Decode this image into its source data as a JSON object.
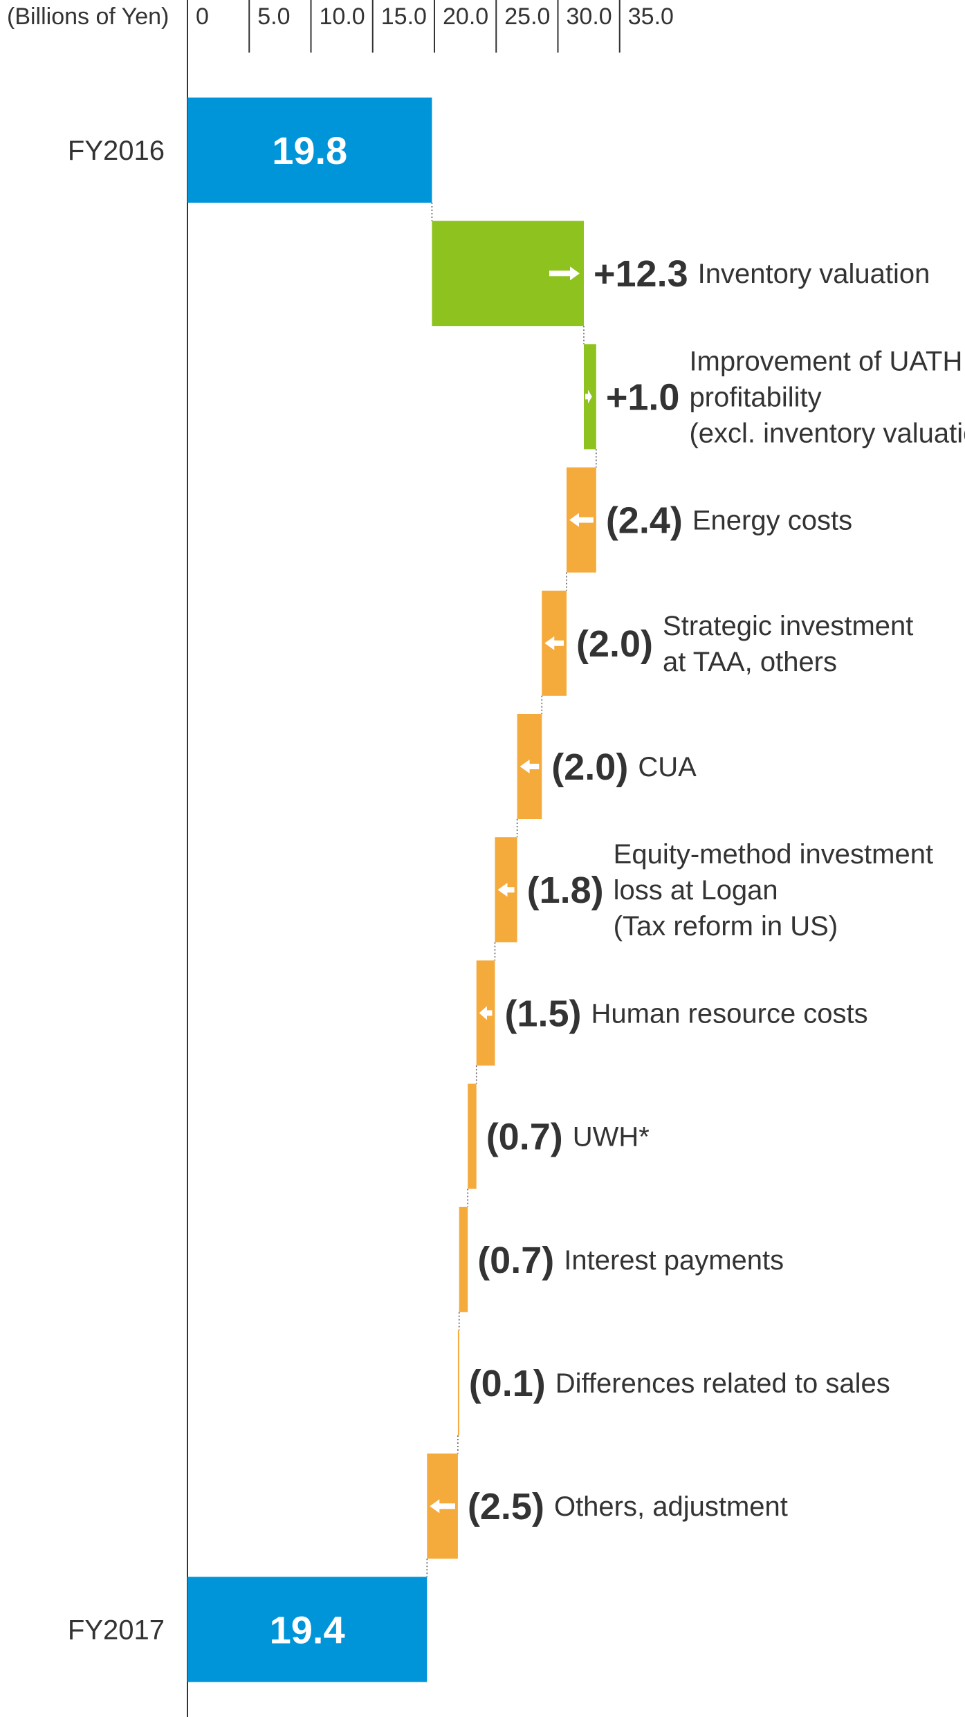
{
  "chart_data": {
    "type": "bar",
    "subtype": "waterfall",
    "orientation": "horizontal",
    "unit_label": "(Billions of Yen)",
    "ticks": [
      "0",
      "5.0",
      "10.0",
      "15.0",
      "20.0",
      "25.0",
      "30.0",
      "35.0"
    ],
    "tick_values": [
      0,
      5,
      10,
      15,
      20,
      25,
      30,
      35
    ],
    "xlim": [
      0,
      35
    ],
    "start": {
      "category": "FY2016",
      "value": 19.8,
      "label": "19.8"
    },
    "steps": [
      {
        "value": 12.3,
        "label": "+12.3",
        "description": [
          "Inventory valuation"
        ]
      },
      {
        "value": 1.0,
        "label": "+1.0",
        "description": [
          "Improvement of UATH",
          "profitability",
          "(excl. inventory valuation)"
        ]
      },
      {
        "value": -2.4,
        "label": "(2.4)",
        "description": [
          "Energy costs"
        ]
      },
      {
        "value": -2.0,
        "label": "(2.0)",
        "description": [
          "Strategic investment",
          "at TAA, others"
        ]
      },
      {
        "value": -2.0,
        "label": "(2.0)",
        "description": [
          "CUA"
        ]
      },
      {
        "value": -1.8,
        "label": "(1.8)",
        "description": [
          "Equity-method investment",
          "loss at Logan",
          "(Tax reform in US)"
        ]
      },
      {
        "value": -1.5,
        "label": "(1.5)",
        "description": [
          "Human resource costs"
        ]
      },
      {
        "value": -0.7,
        "label": "(0.7)",
        "description": [
          "UWH*"
        ]
      },
      {
        "value": -0.7,
        "label": "(0.7)",
        "description": [
          "Interest payments"
        ]
      },
      {
        "value": -0.1,
        "label": "(0.1)",
        "description": [
          "Differences related to sales"
        ]
      },
      {
        "value": -2.5,
        "label": "(2.5)",
        "description": [
          "Others, adjustment"
        ]
      }
    ],
    "end": {
      "category": "FY2017",
      "value": 19.4,
      "label": "19.4"
    },
    "colors": {
      "total": "#0095d9",
      "increase": "#8dc21f",
      "decrease": "#f5aa3c",
      "axis": "#333333",
      "arrow": "#ffffff"
    },
    "grid": false
  }
}
